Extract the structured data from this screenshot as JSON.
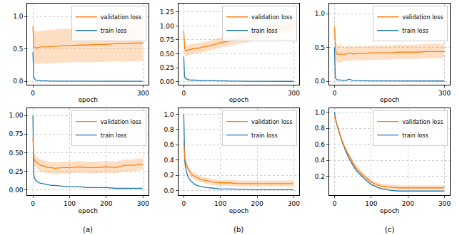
{
  "chart_data": [
    {
      "type": "line",
      "xlabel": "epoch",
      "xlim": [
        -15,
        315
      ],
      "xticks": [
        0,
        300
      ],
      "ylim": [
        -0.05,
        1.2
      ],
      "yticks": [
        {
          "value": 0,
          "label": "0.0"
        },
        0.5,
        {
          "value": 1,
          "label": "1.0"
        }
      ],
      "grid": true,
      "legend": "upper right",
      "x": [
        0,
        1,
        2,
        3,
        5,
        7,
        10,
        15,
        20,
        30,
        40,
        50,
        60,
        80,
        100,
        125,
        150,
        175,
        200,
        225,
        250,
        275,
        299
      ],
      "series": [
        {
          "name": "train loss",
          "color": "#1f77b4",
          "values": [
            0.45,
            0.15,
            0.07,
            0.05,
            0.03,
            0.02,
            0.015,
            0.01,
            0.01,
            0.01,
            0.005,
            0.005,
            0.005,
            0.005,
            0.005,
            0.003,
            0.003,
            0.003,
            0.003,
            0.002,
            0.002,
            0.002,
            0.002
          ]
        },
        {
          "name": "validation loss",
          "color": "#ff7f0e",
          "values": [
            0.85,
            0.6,
            0.55,
            0.53,
            0.52,
            0.52,
            0.52,
            0.52,
            0.53,
            0.53,
            0.53,
            0.54,
            0.54,
            0.55,
            0.55,
            0.56,
            0.56,
            0.57,
            0.57,
            0.58,
            0.58,
            0.59,
            0.59
          ],
          "lower": [
            0.6,
            0.35,
            0.3,
            0.28,
            0.27,
            0.27,
            0.27,
            0.27,
            0.28,
            0.28,
            0.27,
            0.28,
            0.28,
            0.29,
            0.29,
            0.3,
            0.29,
            0.3,
            0.3,
            0.31,
            0.3,
            0.31,
            0.31
          ],
          "upper": [
            1.0,
            0.85,
            0.8,
            0.78,
            0.77,
            0.77,
            0.77,
            0.77,
            0.78,
            0.78,
            0.79,
            0.8,
            0.8,
            0.81,
            0.81,
            0.82,
            0.83,
            0.84,
            0.84,
            0.85,
            0.86,
            0.87,
            0.87
          ]
        }
      ]
    },
    {
      "type": "line",
      "xlabel": "epoch",
      "xlim": [
        -15,
        315
      ],
      "xticks": [
        0,
        300
      ],
      "ylim": [
        -0.05,
        1.4
      ],
      "yticks": [
        {
          "value": 0,
          "label": "0.00"
        },
        0.25,
        {
          "value": 0.5,
          "label": "0.50"
        },
        0.75,
        {
          "value": 1,
          "label": "1.00"
        },
        1.25
      ],
      "grid": true,
      "legend": "upper right",
      "x": [
        0,
        1,
        2,
        3,
        5,
        7,
        10,
        15,
        20,
        30,
        40,
        50,
        60,
        80,
        100,
        125,
        150,
        175,
        200,
        225,
        250,
        275,
        299
      ],
      "series": [
        {
          "name": "train loss",
          "color": "#1f77b4",
          "values": [
            0.45,
            0.2,
            0.12,
            0.08,
            0.06,
            0.05,
            0.04,
            0.035,
            0.03,
            0.03,
            0.025,
            0.02,
            0.02,
            0.018,
            0.015,
            0.013,
            0.012,
            0.01,
            0.01,
            0.01,
            0.008,
            0.008,
            0.008
          ]
        },
        {
          "name": "validation loss",
          "color": "#ff7f0e",
          "values": [
            0.9,
            0.75,
            0.62,
            0.58,
            0.55,
            0.55,
            0.56,
            0.57,
            0.58,
            0.6,
            0.6,
            0.62,
            0.63,
            0.66,
            0.7,
            0.73,
            0.77,
            0.8,
            0.84,
            0.88,
            0.92,
            0.96,
            1.0
          ],
          "lower": [
            0.75,
            0.6,
            0.5,
            0.46,
            0.45,
            0.46,
            0.47,
            0.48,
            0.49,
            0.51,
            0.51,
            0.53,
            0.54,
            0.57,
            0.61,
            0.64,
            0.68,
            0.71,
            0.75,
            0.79,
            0.83,
            0.87,
            0.91
          ],
          "upper": [
            1.05,
            0.9,
            0.75,
            0.7,
            0.65,
            0.64,
            0.65,
            0.66,
            0.67,
            0.69,
            0.69,
            0.71,
            0.72,
            0.75,
            0.79,
            0.82,
            0.86,
            0.89,
            0.93,
            0.97,
            1.01,
            1.05,
            1.09
          ]
        }
      ]
    },
    {
      "type": "line",
      "xlabel": "epoch",
      "xlim": [
        -15,
        315
      ],
      "xticks": [
        0,
        300
      ],
      "ylim": [
        -0.05,
        1.15
      ],
      "yticks": [
        {
          "value": 0,
          "label": "0.0"
        },
        0.5,
        {
          "value": 1,
          "label": "1.0"
        }
      ],
      "grid": true,
      "legend": "upper right",
      "x": [
        0,
        1,
        2,
        3,
        5,
        7,
        10,
        15,
        20,
        30,
        40,
        50,
        60,
        80,
        100,
        125,
        150,
        175,
        200,
        225,
        250,
        275,
        299
      ],
      "series": [
        {
          "name": "train loss",
          "color": "#1f77b4",
          "values": [
            0.5,
            0.15,
            0.06,
            0.04,
            0.03,
            0.02,
            0.02,
            0.015,
            0.015,
            0.01,
            0.03,
            0.01,
            0.008,
            0.006,
            0.005,
            0.005,
            0.004,
            0.004,
            0.004,
            0.003,
            0.003,
            0.003,
            0.003
          ]
        },
        {
          "name": "validation loss",
          "color": "#ff7f0e",
          "values": [
            0.8,
            0.6,
            0.5,
            0.45,
            0.42,
            0.4,
            0.4,
            0.4,
            0.4,
            0.4,
            0.42,
            0.4,
            0.41,
            0.41,
            0.42,
            0.42,
            0.42,
            0.43,
            0.43,
            0.43,
            0.44,
            0.44,
            0.44
          ],
          "lower": [
            0.65,
            0.45,
            0.35,
            0.32,
            0.3,
            0.28,
            0.28,
            0.27,
            0.29,
            0.3,
            0.31,
            0.3,
            0.31,
            0.31,
            0.32,
            0.32,
            0.32,
            0.33,
            0.33,
            0.33,
            0.34,
            0.34,
            0.34
          ],
          "upper": [
            0.95,
            0.75,
            0.65,
            0.58,
            0.55,
            0.52,
            0.53,
            0.55,
            0.52,
            0.51,
            0.53,
            0.51,
            0.52,
            0.52,
            0.53,
            0.53,
            0.53,
            0.54,
            0.54,
            0.54,
            0.55,
            0.55,
            0.55
          ]
        }
      ]
    },
    {
      "type": "line",
      "xlabel": "epoch",
      "caption": "(a)",
      "xlim": [
        -15,
        315
      ],
      "xticks": [
        0,
        100,
        200,
        300
      ],
      "ylim": [
        -0.07,
        1.1
      ],
      "yticks": [
        {
          "value": 0,
          "label": "0.00"
        },
        0.25,
        {
          "value": 0.5,
          "label": "0.50"
        },
        0.75,
        {
          "value": 1,
          "label": "1.00"
        }
      ],
      "grid": true,
      "legend": "upper right",
      "x": [
        0,
        1,
        2,
        3,
        5,
        7,
        10,
        15,
        20,
        30,
        40,
        50,
        60,
        80,
        100,
        125,
        150,
        175,
        200,
        225,
        250,
        275,
        299
      ],
      "series": [
        {
          "name": "train loss",
          "color": "#1f77b4",
          "values": [
            1.0,
            0.4,
            0.25,
            0.18,
            0.15,
            0.13,
            0.12,
            0.1,
            0.09,
            0.08,
            0.07,
            0.06,
            0.06,
            0.05,
            0.04,
            0.04,
            0.03,
            0.03,
            0.03,
            0.02,
            0.02,
            0.02,
            0.02
          ]
        },
        {
          "name": "validation loss",
          "color": "#ff7f0e",
          "values": [
            0.7,
            0.5,
            0.45,
            0.42,
            0.4,
            0.38,
            0.37,
            0.35,
            0.33,
            0.32,
            0.3,
            0.3,
            0.29,
            0.3,
            0.3,
            0.31,
            0.3,
            0.3,
            0.31,
            0.3,
            0.33,
            0.33,
            0.35
          ],
          "lower": [
            0.5,
            0.38,
            0.35,
            0.33,
            0.32,
            0.3,
            0.29,
            0.27,
            0.25,
            0.24,
            0.22,
            0.22,
            0.21,
            0.22,
            0.22,
            0.23,
            0.22,
            0.22,
            0.23,
            0.22,
            0.25,
            0.25,
            0.27
          ],
          "upper": [
            0.9,
            0.62,
            0.55,
            0.51,
            0.48,
            0.46,
            0.45,
            0.43,
            0.41,
            0.4,
            0.38,
            0.38,
            0.37,
            0.38,
            0.38,
            0.39,
            0.38,
            0.38,
            0.39,
            0.38,
            0.41,
            0.41,
            0.43
          ]
        }
      ]
    },
    {
      "type": "line",
      "xlabel": "epoch",
      "caption": "(b)",
      "xlim": [
        -15,
        315
      ],
      "xticks": [
        0,
        100,
        200,
        300
      ],
      "ylim": [
        -0.06,
        1.08
      ],
      "yticks": [
        {
          "value": 0,
          "label": "0.0"
        },
        0.2,
        0.4,
        0.6,
        0.8,
        {
          "value": 1,
          "label": "1.0"
        }
      ],
      "grid": true,
      "legend": "upper right",
      "x": [
        0,
        1,
        2,
        3,
        5,
        7,
        10,
        15,
        20,
        30,
        40,
        50,
        60,
        80,
        100,
        125,
        150,
        175,
        200,
        225,
        250,
        275,
        299
      ],
      "series": [
        {
          "name": "train loss",
          "color": "#1f77b4",
          "values": [
            1.0,
            0.6,
            0.45,
            0.38,
            0.3,
            0.25,
            0.2,
            0.15,
            0.12,
            0.08,
            0.06,
            0.05,
            0.04,
            0.03,
            0.02,
            0.02,
            0.015,
            0.01,
            0.01,
            0.01,
            0.01,
            0.01,
            0.01
          ]
        },
        {
          "name": "validation loss",
          "color": "#ff7f0e",
          "values": [
            0.65,
            0.55,
            0.48,
            0.42,
            0.38,
            0.35,
            0.3,
            0.26,
            0.22,
            0.18,
            0.16,
            0.14,
            0.13,
            0.11,
            0.1,
            0.1,
            0.09,
            0.09,
            0.09,
            0.09,
            0.09,
            0.09,
            0.09
          ],
          "lower": [
            0.61,
            0.51,
            0.44,
            0.38,
            0.34,
            0.31,
            0.26,
            0.22,
            0.18,
            0.14,
            0.12,
            0.1,
            0.09,
            0.07,
            0.06,
            0.06,
            0.05,
            0.05,
            0.05,
            0.05,
            0.05,
            0.05,
            0.05
          ],
          "upper": [
            0.69,
            0.59,
            0.52,
            0.46,
            0.42,
            0.39,
            0.34,
            0.3,
            0.26,
            0.22,
            0.2,
            0.18,
            0.17,
            0.15,
            0.14,
            0.14,
            0.13,
            0.13,
            0.13,
            0.13,
            0.13,
            0.13,
            0.13
          ]
        }
      ]
    },
    {
      "type": "line",
      "xlabel": "epoch",
      "caption": "(c)",
      "xlim": [
        -15,
        315
      ],
      "xticks": [
        0,
        100,
        200,
        300
      ],
      "ylim": [
        -0.03,
        1.05
      ],
      "yticks": [
        0.2,
        0.4,
        0.6,
        0.8,
        {
          "value": 1,
          "label": "1.0"
        }
      ],
      "grid": true,
      "legend": "upper right",
      "x": [
        0,
        1,
        2,
        3,
        5,
        7,
        10,
        15,
        20,
        30,
        40,
        50,
        60,
        80,
        100,
        125,
        150,
        175,
        200,
        225,
        250,
        275,
        299
      ],
      "series": [
        {
          "name": "train loss",
          "color": "#1f77b4",
          "values": [
            1.0,
            0.95,
            0.93,
            0.91,
            0.87,
            0.84,
            0.78,
            0.71,
            0.64,
            0.52,
            0.42,
            0.34,
            0.27,
            0.18,
            0.1,
            0.05,
            0.03,
            0.02,
            0.02,
            0.02,
            0.02,
            0.02,
            0.02
          ]
        },
        {
          "name": "validation loss",
          "color": "#ff7f0e",
          "values": [
            0.95,
            0.93,
            0.91,
            0.89,
            0.86,
            0.83,
            0.78,
            0.71,
            0.65,
            0.54,
            0.45,
            0.37,
            0.3,
            0.21,
            0.13,
            0.08,
            0.07,
            0.06,
            0.06,
            0.06,
            0.06,
            0.06,
            0.06
          ],
          "lower": [
            0.92,
            0.9,
            0.88,
            0.86,
            0.83,
            0.8,
            0.75,
            0.68,
            0.62,
            0.51,
            0.42,
            0.34,
            0.27,
            0.18,
            0.1,
            0.05,
            0.04,
            0.03,
            0.03,
            0.03,
            0.03,
            0.03,
            0.03
          ],
          "upper": [
            0.98,
            0.96,
            0.94,
            0.92,
            0.89,
            0.86,
            0.81,
            0.74,
            0.68,
            0.57,
            0.48,
            0.4,
            0.33,
            0.24,
            0.16,
            0.11,
            0.1,
            0.09,
            0.09,
            0.09,
            0.09,
            0.09,
            0.09
          ]
        }
      ]
    }
  ]
}
